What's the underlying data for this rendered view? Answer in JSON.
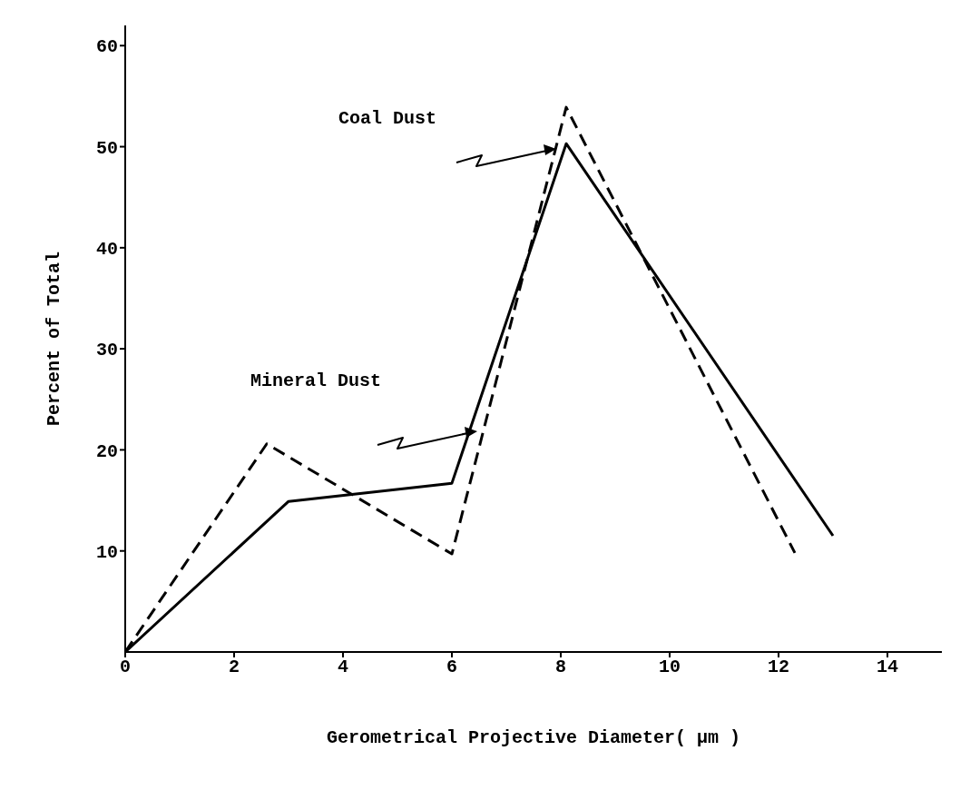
{
  "chart_data": {
    "type": "line",
    "xlabel": "Gerometrical Projective Diameter( µm )",
    "ylabel": "Percent of Total",
    "xlim": [
      0,
      15
    ],
    "ylim": [
      0,
      62
    ],
    "xticks": [
      0,
      2,
      4,
      6,
      8,
      10,
      12,
      14
    ],
    "yticks": [
      10,
      20,
      30,
      40,
      50,
      60
    ],
    "marker": "none",
    "series": [
      {
        "color": "#000000",
        "line_style": "solid",
        "x": [
          0,
          3,
          6,
          8.1,
          13
        ],
        "values": [
          0,
          14.9,
          16.7,
          50.3,
          11.5
        ]
      },
      {
        "color": "#000000",
        "line_style": "dashed",
        "x": [
          0,
          2.6,
          6,
          8.1,
          12.3
        ],
        "values": [
          0,
          20.6,
          9.7,
          53.9,
          9.8
        ]
      }
    ],
    "annotations": [
      "Coal Dust",
      "Mineral Dust"
    ]
  }
}
